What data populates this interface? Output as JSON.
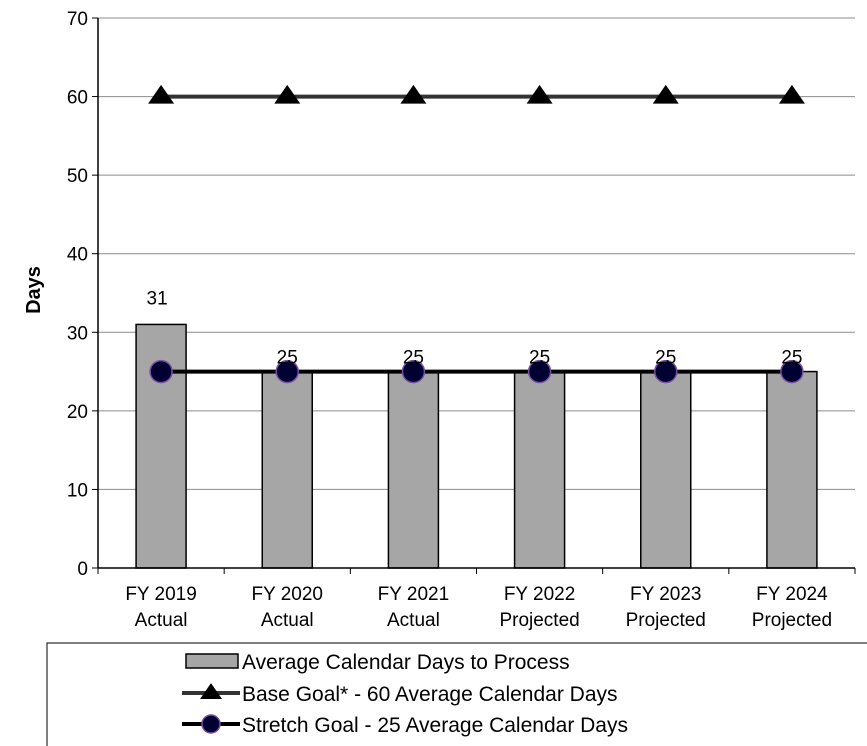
{
  "chart_data": {
    "type": "bar",
    "ylabel": "Days",
    "ylim": [
      0,
      70
    ],
    "yticks": [
      0,
      10,
      20,
      30,
      40,
      50,
      60,
      70
    ],
    "grid": true,
    "legend_position": "bottom",
    "categories": [
      [
        "FY 2019",
        "Actual"
      ],
      [
        "FY 2020",
        "Actual"
      ],
      [
        "FY 2021",
        "Actual"
      ],
      [
        "FY 2022",
        "Projected"
      ],
      [
        "FY 2023",
        "Projected"
      ],
      [
        "FY 2024",
        "Projected"
      ]
    ],
    "series": [
      {
        "name": "Average Calendar Days to Process",
        "kind": "bar",
        "values": [
          31,
          25,
          25,
          25,
          25,
          25
        ],
        "data_labels": [
          "31",
          "25",
          "25",
          "25",
          "25",
          "25"
        ],
        "color": "#a6a6a6"
      },
      {
        "name": "Base Goal* - 60 Average Calendar Days",
        "kind": "line",
        "marker": "triangle",
        "values": [
          60,
          60,
          60,
          60,
          60,
          60
        ],
        "color": "#000000"
      },
      {
        "name": "Stretch Goal - 25 Average Calendar Days",
        "kind": "line",
        "marker": "circle",
        "values": [
          25,
          25,
          25,
          25,
          25,
          25
        ],
        "color": "#000000",
        "marker_fill": "#000033",
        "marker_edge": "#7a4fa0"
      }
    ]
  }
}
